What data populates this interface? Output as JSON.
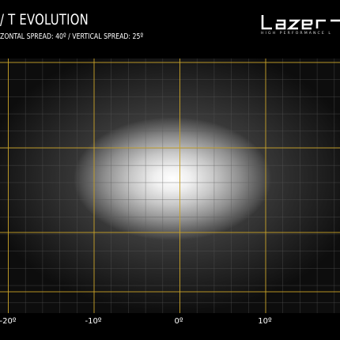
{
  "header": {
    "title": "/ T EVOLUTION",
    "subtitle": "ZONTAL SPREAD: 40º  /  VERTICAL SPREAD:  25º"
  },
  "logo": {
    "wordmark": "Lazer",
    "tagline": "HIGH PERFORMANCE L",
    "color": "#ffffff"
  },
  "plot": {
    "x_axis_ticks": [
      "-20º",
      "-10º",
      "0º",
      "10º"
    ],
    "major_grid_color": "#c9a227",
    "minor_grid_color": "#5a5a5a"
  }
}
